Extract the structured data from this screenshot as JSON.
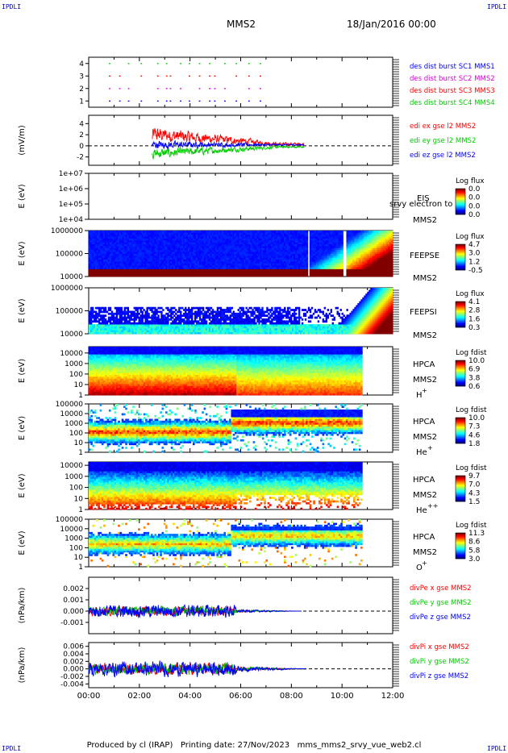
{
  "header": {
    "corner_label": "IPDLI",
    "spacecraft": "MMS2",
    "date": "18/Jan/2016 00:00"
  },
  "footer": {
    "produced_by": "Produced by cl (IRAP)",
    "printing_date": "Printing date: 27/Nov/2023",
    "filename": "mms_mms2_srvy_vue_web2.cl"
  },
  "colors": {
    "red": "#ff0000",
    "green": "#00cc00",
    "blue": "#0000ff",
    "magenta": "#dd00dd",
    "label_blue": "#0000aa"
  },
  "chart_data": [
    {
      "id": "burst",
      "type": "scatter",
      "ylim": [
        0.5,
        4.5
      ],
      "yticks": [
        "1",
        "2",
        "3",
        "4"
      ],
      "series": [
        {
          "name": "des dist burst SC1 MMS1",
          "color": "#0000ff",
          "y": 1
        },
        {
          "name": "des dist burst SC2 MMS2",
          "color": "#dd00dd",
          "y": 2
        },
        {
          "name": "des dist burst SC3 MMS3",
          "color": "#ff0000",
          "y": 3
        },
        {
          "name": "des dist burst SC4 MMS4",
          "color": "#00cc00",
          "y": 4
        }
      ],
      "burst_times_h": [
        0.8,
        1.2,
        1.55,
        2.05,
        2.7,
        3.05,
        3.2,
        3.6,
        3.95,
        4.35,
        4.75,
        4.95,
        5.35,
        5.8,
        6.3,
        6.75
      ]
    },
    {
      "id": "edi",
      "type": "line",
      "ylabel": "(mV/m)",
      "ylim": [
        -3.5,
        5.5
      ],
      "yticks": [
        "-2",
        "0",
        "2",
        "4"
      ],
      "x_range_h": [
        2.5,
        8.5
      ],
      "series": [
        {
          "name": "edi ex gse l2 MMS2",
          "color": "#ff0000"
        },
        {
          "name": "edi ey gse l2 MMS2",
          "color": "#00cc00"
        },
        {
          "name": "edi ez gse l2 MMS2",
          "color": "#0000ff"
        }
      ]
    },
    {
      "id": "eis",
      "type": "heatmap",
      "ylabel": "E (eV)",
      "ylim": [
        10000,
        10000000
      ],
      "yticks": [
        "1e+04",
        "1e+05",
        "1e+06",
        "1e+07"
      ],
      "instrument": "EIS",
      "spacecraft": "MMS2",
      "note": "srvy electron to",
      "colorbar_title": "Log flux",
      "colorbar_ticks": [
        "0.0",
        "0.0",
        "0.0",
        "0.0"
      ]
    },
    {
      "id": "feepse",
      "type": "heatmap",
      "ylabel": "E (eV)",
      "ylim": [
        10000,
        1000000
      ],
      "yticks": [
        "10000",
        "100000",
        "1000000"
      ],
      "instrument": "FEEPSE",
      "spacecraft": "MMS2",
      "colorbar_title": "Log flux",
      "colorbar_ticks": [
        "4.7",
        "3.0",
        "1.2",
        "-0.5"
      ]
    },
    {
      "id": "feepsi",
      "type": "heatmap",
      "ylabel": "E (eV)",
      "ylim": [
        10000,
        1000000
      ],
      "yticks": [
        "10000",
        "100000",
        "1000000"
      ],
      "instrument": "FEEPSI",
      "spacecraft": "MMS2",
      "colorbar_title": "Log flux",
      "colorbar_ticks": [
        "4.1",
        "2.8",
        "1.6",
        "0.3"
      ]
    },
    {
      "id": "hpca_h",
      "type": "heatmap",
      "ylabel": "E (eV)",
      "ylim": [
        1,
        40000
      ],
      "yticks": [
        "1",
        "10",
        "100",
        "1000",
        "10000"
      ],
      "instrument": "HPCA",
      "spacecraft": "MMS2",
      "species": "H",
      "charge": "+",
      "colorbar_title": "Log fdist",
      "colorbar_ticks": [
        "10.0",
        "6.9",
        "3.8",
        "0.6"
      ]
    },
    {
      "id": "hpca_he",
      "type": "heatmap",
      "ylabel": "E (eV)",
      "ylim": [
        1,
        100000
      ],
      "yticks": [
        "1",
        "10",
        "100",
        "1000",
        "10000",
        "100000"
      ],
      "instrument": "HPCA",
      "spacecraft": "MMS2",
      "species": "He",
      "charge": "+",
      "colorbar_title": "Log fdist",
      "colorbar_ticks": [
        "10.0",
        "7.3",
        "4.6",
        "1.8"
      ]
    },
    {
      "id": "hpca_hepp",
      "type": "heatmap",
      "ylabel": "E (eV)",
      "ylim": [
        1,
        20000
      ],
      "yticks": [
        "1",
        "10",
        "100",
        "1000",
        "10000"
      ],
      "instrument": "HPCA",
      "spacecraft": "MMS2",
      "species": "He",
      "charge": "++",
      "colorbar_title": "Log fdist",
      "colorbar_ticks": [
        "9.7",
        "7.0",
        "4.3",
        "1.5"
      ]
    },
    {
      "id": "hpca_o",
      "type": "heatmap",
      "ylabel": "E (eV)",
      "ylim": [
        1,
        100000
      ],
      "yticks": [
        "1",
        "10",
        "100",
        "1000",
        "10000",
        "100000"
      ],
      "instrument": "HPCA",
      "spacecraft": "MMS2",
      "species": "O",
      "charge": "+",
      "colorbar_title": "Log fdist",
      "colorbar_ticks": [
        "11.3",
        "8.6",
        "5.8",
        "3.0"
      ]
    },
    {
      "id": "divpe",
      "type": "line",
      "ylabel": "(nPa/km)",
      "ylim": [
        -0.002,
        0.003
      ],
      "yticks": [
        "-0.001",
        "0.000",
        "0.001",
        "0.002"
      ],
      "x_range_h": [
        0,
        8.4
      ],
      "series": [
        {
          "name": "divPe x gse MMS2",
          "color": "#ff0000"
        },
        {
          "name": "divPe y gse MMS2",
          "color": "#00cc00"
        },
        {
          "name": "divPe z gse MMS2",
          "color": "#0000ff"
        }
      ]
    },
    {
      "id": "divpi",
      "type": "line",
      "ylabel": "(nPa/km)",
      "ylim": [
        -0.005,
        0.007
      ],
      "yticks": [
        "-0.004",
        "-0.002",
        "0.000",
        "0.002",
        "0.004",
        "0.006"
      ],
      "x_range_h": [
        0,
        8.6
      ],
      "series": [
        {
          "name": "divPi x gse MMS2",
          "color": "#ff0000"
        },
        {
          "name": "divPi y gse MMS2",
          "color": "#00cc00"
        },
        {
          "name": "divPi z gse MMS2",
          "color": "#0000ff"
        }
      ]
    }
  ],
  "time_axis": {
    "xlim_h": [
      0,
      12
    ],
    "ticks": [
      "00:00",
      "02:00",
      "04:00",
      "06:00",
      "08:00",
      "10:00",
      "12:00"
    ]
  }
}
